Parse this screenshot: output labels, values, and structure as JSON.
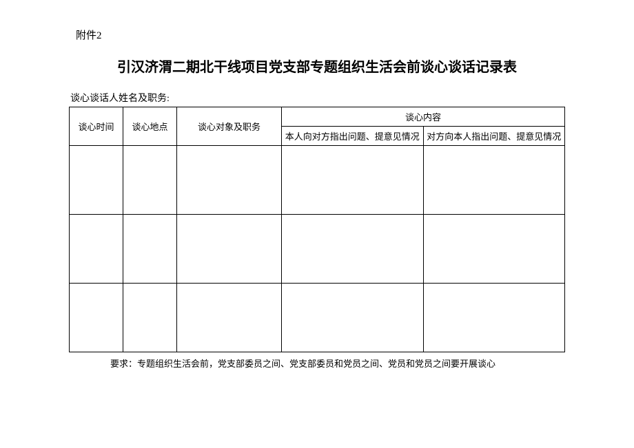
{
  "appendix": "附件2",
  "title": "引汉济渭二期北干线项目党支部专题组织生活会前谈心谈话记录表",
  "subtitle": "谈心谈话人姓名及职务:",
  "headers": {
    "time": "谈心时间",
    "place": "谈心地点",
    "target": "谈心对象及职务",
    "content": "谈心内容",
    "content_left": "本人向对方指出问题、提意见情况",
    "content_right": "对方向本人指出问题、提意见情况"
  },
  "footer": "要求：专题组织生活会前，党支部委员之间、党支部委员和党员之间、党员和党员之间要开展谈心",
  "rows": [
    {
      "time": "",
      "place": "",
      "target": "",
      "left": "",
      "right": ""
    },
    {
      "time": "",
      "place": "",
      "target": "",
      "left": "",
      "right": ""
    },
    {
      "time": "",
      "place": "",
      "target": "",
      "left": "",
      "right": ""
    }
  ],
  "colors": {
    "border": "#000000",
    "background": "#ffffff",
    "text": "#000000"
  }
}
